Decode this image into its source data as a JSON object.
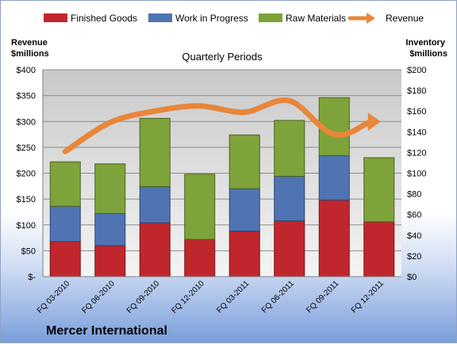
{
  "company": "Mercer International",
  "chart_data": {
    "type": "bar",
    "subtype": "stacked-bar-with-line",
    "title": "Quarterly Periods",
    "ylabel_left": "Revenue $millions",
    "ylabel_right": "Inventory $millions",
    "y_left_ticks": [
      "$-",
      "$50",
      "$100",
      "$150",
      "$200",
      "$250",
      "$300",
      "$350",
      "$400"
    ],
    "y_right_ticks": [
      "$0",
      "$20",
      "$40",
      "$60",
      "$80",
      "$100",
      "$120",
      "$140",
      "$160",
      "$180",
      "$200"
    ],
    "ylim_left": [
      0,
      400
    ],
    "ylim_right": [
      0,
      200
    ],
    "categories": [
      "FQ 03-2010",
      "FQ 06-2010",
      "FQ 09-2010",
      "FQ 12-2010",
      "FQ 03-2011",
      "FQ 06-2011",
      "FQ 09-2011",
      "FQ 12-2011"
    ],
    "series": [
      {
        "name": "Finished Goods",
        "axis": "right",
        "color": "#c0272d",
        "values": [
          34,
          30,
          52,
          36,
          44,
          54,
          74,
          53
        ]
      },
      {
        "name": "Work in Progress",
        "axis": "right",
        "color": "#4f74b4",
        "values": [
          34,
          31,
          35,
          0,
          41,
          43,
          43,
          0
        ]
      },
      {
        "name": "Raw Materials",
        "axis": "right",
        "color": "#7ea33a",
        "values": [
          43,
          48,
          66,
          63,
          52,
          54,
          56,
          62
        ]
      },
      {
        "name": "Revenue",
        "axis": "left",
        "type": "line",
        "color": "#e8863a",
        "values": [
          242,
          298,
          320,
          330,
          318,
          340,
          275,
          300
        ]
      }
    ],
    "legend_position": "top",
    "grid": true
  }
}
